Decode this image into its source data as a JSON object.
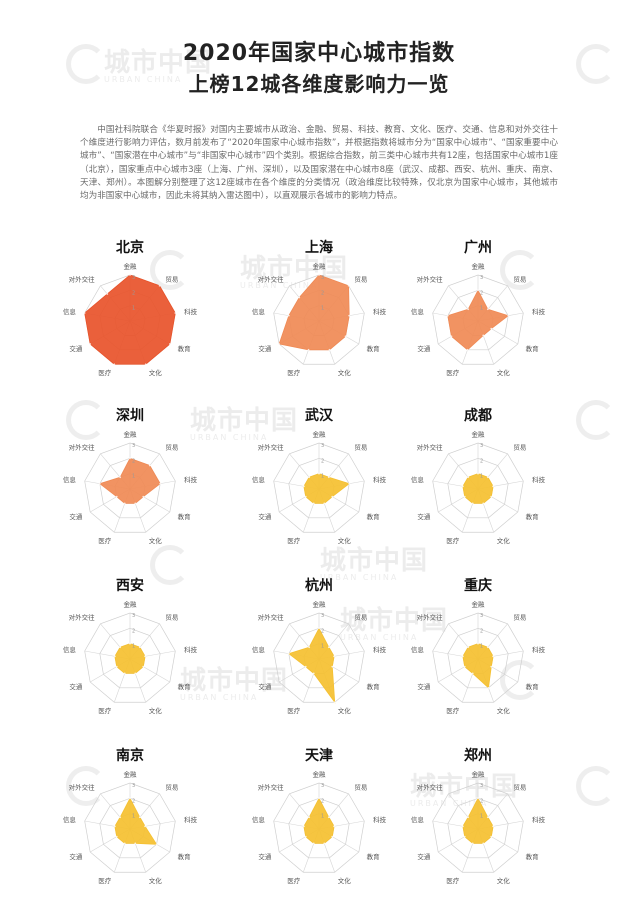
{
  "title": "2020年国家中心城市指数",
  "subtitle": "上榜12城各维度影响力一览",
  "intro": "中国社科院联合《华夏时报》对国内主要城市从政治、金融、贸易、科技、教育、文化、医疗、交通、信息和对外交往十个维度进行影响力评估，数月前发布了“2020年国家中心城市指数”，并根据指数将城市分为“国家中心城市”、“国家重要中心城市”、“国家潜在中心城市”与“非国家中心城市”四个类别。根据综合指数，前三类中心城市共有12座，包括国家中心城市1座（北京），国家重点中心城市3座（上海、广州、深圳），以及国家潜在中心城市8座（武汉、成都、西安、杭州、重庆、南京、天津、郑州）。本图解分别整理了这12座城市在各个维度的分类情况（政治维度比较特殊，仅北京为国家中心城市，其他城市均为非国家中心城市，因此未将其纳入雷达图中），以直观展示各城市的影响力特点。",
  "watermark": {
    "text": "城市中国",
    "sub": "URBAN CHINA"
  },
  "chart_data": {
    "type": "radar",
    "dimensions": [
      "金融",
      "贸易",
      "科技",
      "教育",
      "文化",
      "医疗",
      "交通",
      "信息",
      "对外交往"
    ],
    "ring_labels": [
      "1",
      "2",
      "3"
    ],
    "rmax": 3,
    "charts": [
      {
        "city": "北京",
        "color": "#e8532a",
        "values": [
          3,
          3,
          3,
          3,
          3,
          3,
          3,
          3,
          2.3
        ]
      },
      {
        "city": "上海",
        "color": "#f08a55",
        "values": [
          3,
          3,
          2,
          2,
          2,
          2,
          3,
          2,
          2
        ]
      },
      {
        "city": "广州",
        "color": "#f08a55",
        "values": [
          2,
          1,
          2,
          1,
          1,
          2,
          2,
          2,
          1
        ]
      },
      {
        "city": "深圳",
        "color": "#f08a55",
        "values": [
          2,
          2,
          2,
          1,
          1,
          1,
          1,
          2,
          1
        ]
      },
      {
        "city": "武汉",
        "color": "#f5c030",
        "values": [
          1,
          1,
          2,
          1,
          1,
          1,
          1,
          1,
          1
        ]
      },
      {
        "city": "成都",
        "color": "#f5c030",
        "values": [
          1,
          1,
          1,
          1,
          1,
          1,
          1,
          1,
          1
        ]
      },
      {
        "city": "西安",
        "color": "#f5c030",
        "values": [
          1,
          1,
          1,
          1,
          1,
          1,
          1,
          1,
          1
        ]
      },
      {
        "city": "杭州",
        "color": "#f5c030",
        "values": [
          2,
          1,
          1,
          1,
          3,
          1,
          1,
          2,
          1
        ]
      },
      {
        "city": "重庆",
        "color": "#f5c030",
        "values": [
          1,
          1,
          1,
          1,
          2,
          1,
          1,
          1,
          1
        ]
      },
      {
        "city": "南京",
        "color": "#f5c030",
        "values": [
          2,
          1,
          1,
          2,
          1,
          1,
          1,
          1,
          1
        ]
      },
      {
        "city": "天津",
        "color": "#f5c030",
        "values": [
          2,
          1,
          1,
          1,
          1,
          1,
          1,
          1,
          1
        ]
      },
      {
        "city": "郑州",
        "color": "#f5c030",
        "values": [
          2,
          1,
          1,
          1,
          1,
          1,
          1,
          1,
          1
        ]
      }
    ]
  }
}
